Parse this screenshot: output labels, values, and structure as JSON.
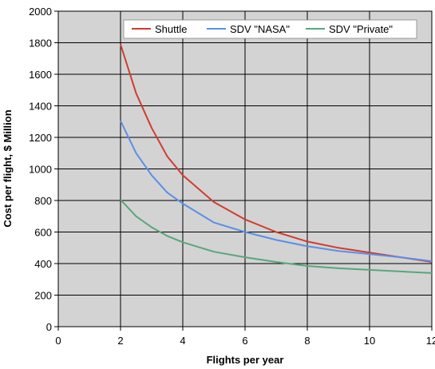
{
  "chart_data": {
    "type": "line",
    "xlabel": "Flights per year",
    "ylabel": "Cost per flight, $ Million",
    "xlim": [
      0,
      12
    ],
    "ylim": [
      0,
      2000
    ],
    "xticks": [
      0,
      2,
      4,
      6,
      8,
      10,
      12
    ],
    "xtick_labels": [
      "0",
      "2",
      "4",
      "6",
      "8",
      "10",
      "12"
    ],
    "yticks": [
      0,
      200,
      400,
      600,
      800,
      1000,
      1200,
      1400,
      1600,
      1800,
      2000
    ],
    "ytick_labels": [
      "0",
      "200",
      "400",
      "600",
      "800",
      "1000",
      "1200",
      "1400",
      "1600",
      "1800",
      "2000"
    ],
    "grid": true,
    "legend_position": "top-right",
    "x": [
      2,
      2.5,
      3,
      3.5,
      4,
      5,
      6,
      7,
      8,
      9,
      10,
      11,
      12
    ],
    "series": [
      {
        "name": "Shuttle",
        "color": "#d03c2c",
        "values": [
          1790,
          1480,
          1260,
          1080,
          960,
          790,
          680,
          600,
          540,
          500,
          470,
          440,
          410
        ]
      },
      {
        "name": "SDV \"NASA\"",
        "color": "#5b8fe6",
        "values": [
          1305,
          1100,
          960,
          850,
          780,
          660,
          600,
          550,
          510,
          480,
          460,
          440,
          415
        ]
      },
      {
        "name": "SDV \"Private\"",
        "color": "#5aa67a",
        "values": [
          805,
          700,
          630,
          575,
          535,
          475,
          440,
          410,
          385,
          370,
          360,
          350,
          340
        ]
      }
    ]
  }
}
